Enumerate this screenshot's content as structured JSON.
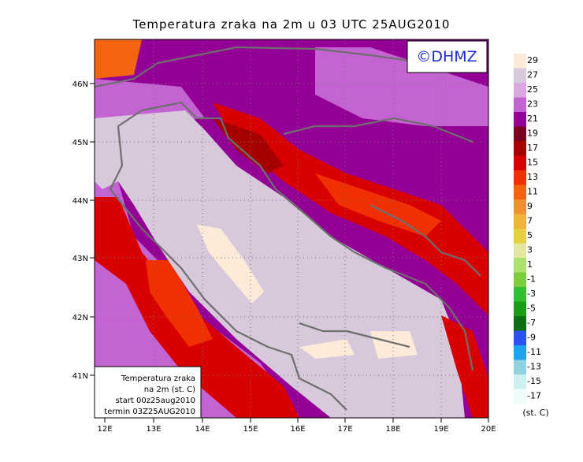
{
  "title": "Temperatura zraka na 2m u 03 UTC 25AUG2010",
  "copyright": "©DHMZ",
  "lat_labels": [
    "46N",
    "45N",
    "44N",
    "43N",
    "42N",
    "41N"
  ],
  "lon_labels": [
    "12E",
    "13E",
    "14E",
    "15E",
    "16E",
    "17E",
    "18E",
    "19E",
    "20E"
  ],
  "info_box": [
    "Temperatura zraka",
    "na 2m (st. C)",
    "start 00z25aug2010",
    "termin 03Z25AUG2010"
  ],
  "colorbar": {
    "unit": "(st. C)",
    "levels": [
      29,
      27,
      25,
      23,
      21,
      19,
      17,
      15,
      13,
      11,
      9,
      7,
      5,
      3,
      1,
      -1,
      -3,
      -5,
      -7,
      -9,
      -11,
      -13,
      -15,
      -17
    ],
    "colors": [
      "#fcebd9",
      "#d8c8dc",
      "#dda8e2",
      "#c364d2",
      "#940096",
      "#7a0022",
      "#a60000",
      "#d80000",
      "#f03000",
      "#f26410",
      "#f09030",
      "#f0b438",
      "#e6d040",
      "#e2e6a0",
      "#aee070",
      "#7ccc3c",
      "#2ec030",
      "#1a9e1a",
      "#0e6e12",
      "#2c52f0",
      "#1ea2ee",
      "#90d2e2",
      "#cceff2",
      "#eefcfc"
    ]
  }
}
